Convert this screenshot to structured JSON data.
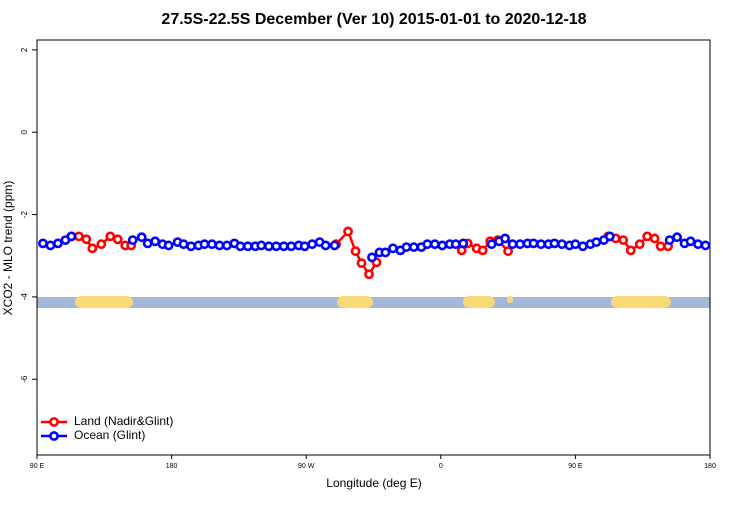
{
  "chart_data": {
    "type": "line",
    "title": "27.5S-22.5S December (Ver 10)   2015-01-01 to 2020-12-18",
    "x_label": "Longitude (deg E)",
    "y_label": "XCO2 - MLO trend (ppm)",
    "xlim": [
      90,
      540
    ],
    "xticks": [
      {
        "value": 90,
        "label": "90 E"
      },
      180,
      {
        "value": 270,
        "label": "90 W"
      },
      {
        "value": 360,
        "label": "0"
      },
      {
        "value": 450,
        "label": "90 E"
      },
      {
        "value": 540,
        "label": "180"
      }
    ],
    "ylim": [
      -7.84,
      2.24
    ],
    "yticks": [
      2,
      0,
      -2,
      -4,
      -6
    ],
    "legend": "bottom-left",
    "series": [
      {
        "name": "Land (Nadir&Glint)",
        "color": "#ff0000",
        "x": [
          113,
          118,
          123,
          127,
          133,
          139,
          144,
          149,
          153,
          290,
          298,
          303,
          307,
          312,
          317,
          374,
          378,
          384,
          388,
          393,
          398,
          405,
          472,
          477,
          482,
          487,
          493,
          498,
          503,
          507,
          512
        ],
        "values": [
          -2.53,
          -2.53,
          -2.6,
          -2.82,
          -2.72,
          -2.53,
          -2.6,
          -2.75,
          -2.75,
          -2.72,
          -2.41,
          -2.89,
          -3.18,
          -3.45,
          -3.16,
          -2.87,
          -2.7,
          -2.82,
          -2.87,
          -2.65,
          -2.62,
          -2.89,
          -2.53,
          -2.58,
          -2.62,
          -2.87,
          -2.72,
          -2.53,
          -2.58,
          -2.77,
          -2.77
        ]
      },
      {
        "name": "Ocean (Glint)",
        "color": "#0000ff",
        "x": [
          94,
          99,
          104,
          109,
          113,
          154,
          160,
          164,
          169,
          174,
          178,
          184,
          188,
          193,
          198,
          202,
          207,
          212,
          217,
          222,
          226,
          231,
          236,
          240,
          245,
          250,
          255,
          260,
          265,
          269,
          274,
          279,
          283,
          289,
          314,
          319,
          323,
          328,
          333,
          337,
          342,
          347,
          351,
          356,
          361,
          366,
          370,
          375,
          394,
          399,
          403,
          408,
          413,
          418,
          422,
          427,
          432,
          436,
          441,
          446,
          450,
          455,
          460,
          464,
          469,
          473,
          513,
          518,
          523,
          527,
          532,
          537
        ],
        "values": [
          -2.7,
          -2.75,
          -2.7,
          -2.62,
          -2.53,
          -2.62,
          -2.55,
          -2.7,
          -2.65,
          -2.72,
          -2.75,
          -2.67,
          -2.72,
          -2.77,
          -2.75,
          -2.72,
          -2.72,
          -2.75,
          -2.75,
          -2.7,
          -2.77,
          -2.77,
          -2.77,
          -2.75,
          -2.77,
          -2.77,
          -2.77,
          -2.77,
          -2.75,
          -2.77,
          -2.72,
          -2.67,
          -2.75,
          -2.75,
          -3.04,
          -2.92,
          -2.92,
          -2.82,
          -2.87,
          -2.79,
          -2.79,
          -2.79,
          -2.72,
          -2.72,
          -2.75,
          -2.72,
          -2.72,
          -2.7,
          -2.72,
          -2.65,
          -2.58,
          -2.72,
          -2.72,
          -2.7,
          -2.7,
          -2.72,
          -2.72,
          -2.7,
          -2.72,
          -2.75,
          -2.72,
          -2.77,
          -2.72,
          -2.67,
          -2.62,
          -2.53,
          -2.62,
          -2.55,
          -2.7,
          -2.65,
          -2.72,
          -2.75
        ]
      }
    ]
  }
}
